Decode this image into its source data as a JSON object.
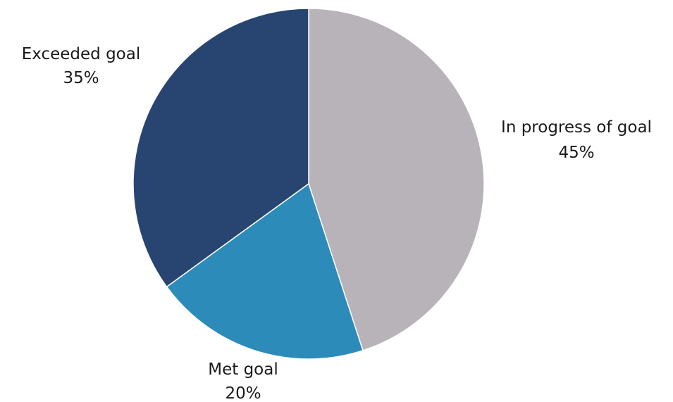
{
  "chart_data": {
    "type": "pie",
    "categories": [
      "In progress of goal",
      "Met goal",
      "Exceeded goal"
    ],
    "values": [
      45,
      20,
      35
    ],
    "value_labels": [
      "45%",
      "20%",
      "35%"
    ],
    "colors": [
      "#b8b3b9",
      "#2d8bba",
      "#284571"
    ],
    "start_angle": "12 o'clock",
    "direction": "clockwise",
    "legend": "none"
  }
}
